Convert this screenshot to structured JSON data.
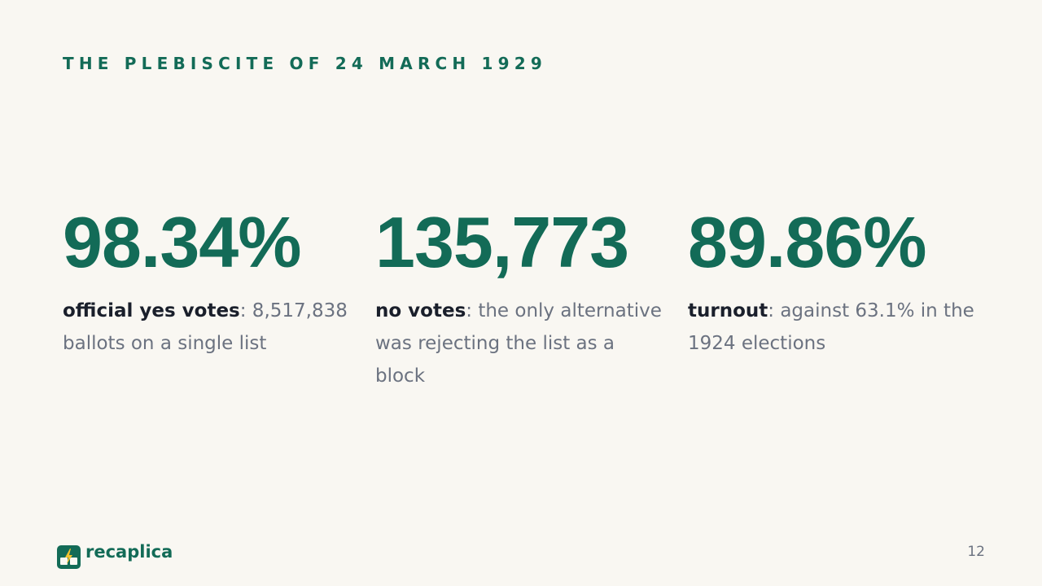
{
  "header": {
    "title": "THE PLEBISCITE OF 24 MARCH 1929"
  },
  "stats": [
    {
      "value": "98.34%",
      "label": "official yes votes",
      "text": ": 8,517,838 ballots on a single list"
    },
    {
      "value": "135,773",
      "label": "no votes",
      "text": ": the only alternative was rejecting the list as a block"
    },
    {
      "value": "89.86%",
      "label": "turnout",
      "text": ": against 63.1% in the 1924 elections"
    }
  ],
  "footer": {
    "brand": "recaplica",
    "page_number": "12"
  }
}
